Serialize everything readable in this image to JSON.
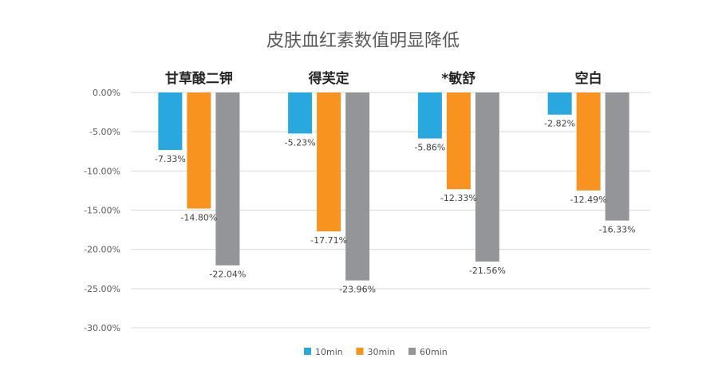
{
  "chart_data": {
    "type": "bar",
    "title": "皮肤血红素数值明显降低",
    "categories": [
      "甘草酸二钾",
      "得芙定",
      "*敏舒",
      "空白"
    ],
    "series": [
      {
        "name": "10min",
        "color": "#29A8E0",
        "values": [
          -7.33,
          -5.23,
          -5.86,
          -2.82
        ],
        "labels": [
          "-7.33%",
          "-5.23%",
          "-5.86%",
          "-2.82%"
        ]
      },
      {
        "name": "30min",
        "color": "#F7931E",
        "values": [
          -14.8,
          -17.71,
          -12.33,
          -12.49
        ],
        "labels": [
          "-14.80%",
          "-17.71%",
          "-12.33%",
          "-12.49%"
        ]
      },
      {
        "name": "60min",
        "color": "#939598",
        "values": [
          -22.04,
          -23.96,
          -21.56,
          -16.33
        ],
        "labels": [
          "-22.04%",
          "-23.96%",
          "-21.56%",
          "-16.33%"
        ]
      }
    ],
    "yticks": [
      "0.00%",
      "-5.00%",
      "-10.00%",
      "-15.00%",
      "-20.00%",
      "-25.00%",
      "-30.00%"
    ],
    "ylim": [
      -30,
      0
    ],
    "grid": true,
    "legend": "bottom"
  }
}
